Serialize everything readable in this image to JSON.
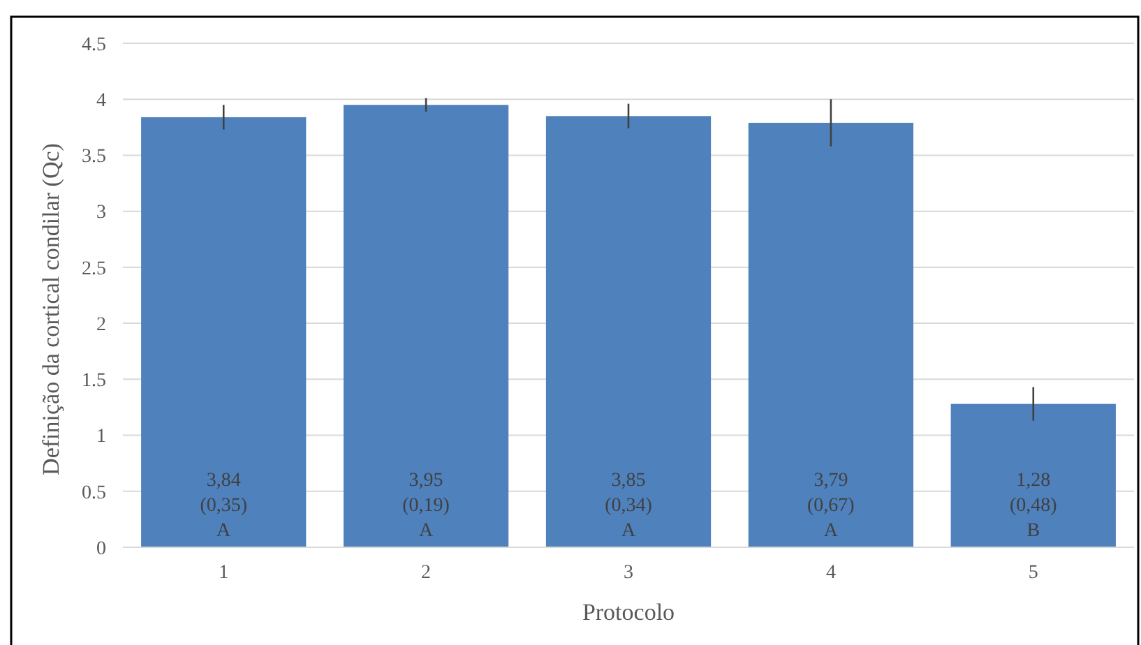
{
  "chart_data": {
    "type": "bar",
    "xlabel": "Protocolo",
    "ylabel": "Definição da cortical condilar (Qc)",
    "categories": [
      "1",
      "2",
      "3",
      "4",
      "5"
    ],
    "values": [
      3.84,
      3.95,
      3.85,
      3.79,
      1.28
    ],
    "color": "#4f81bd",
    "errors": [
      0.11,
      0.06,
      0.11,
      0.21,
      0.15
    ],
    "value_labels": [
      "3,84\n(0,35)\nA",
      "3,95\n(0,19)\nA",
      "3,85\n(0,34)\nA",
      "3,79\n(0,67)\nA",
      "1,28\n(0,48)\nB"
    ],
    "ylim": [
      0,
      4.5
    ],
    "yticks": [
      0,
      0.5,
      1,
      1.5,
      2,
      2.5,
      3,
      3.5,
      4,
      4.5
    ],
    "grid": "y"
  }
}
